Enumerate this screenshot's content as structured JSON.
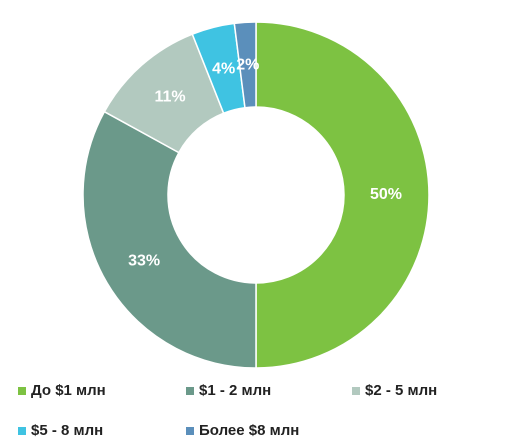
{
  "chart_data": {
    "type": "donut",
    "categories": [
      "До $1 млн",
      "$1 - 2 млн",
      "$2 - 5 млн",
      "$5 - 8 млн",
      "Более $8 млн"
    ],
    "values": [
      50,
      33,
      11,
      4,
      2
    ],
    "value_labels": [
      "50%",
      "33%",
      "11%",
      "4%",
      "2%"
    ],
    "colors": [
      "#7dc242",
      "#6b998a",
      "#b2c9bf",
      "#3fc3e2",
      "#5b8fbb"
    ],
    "legend": "bottom"
  }
}
